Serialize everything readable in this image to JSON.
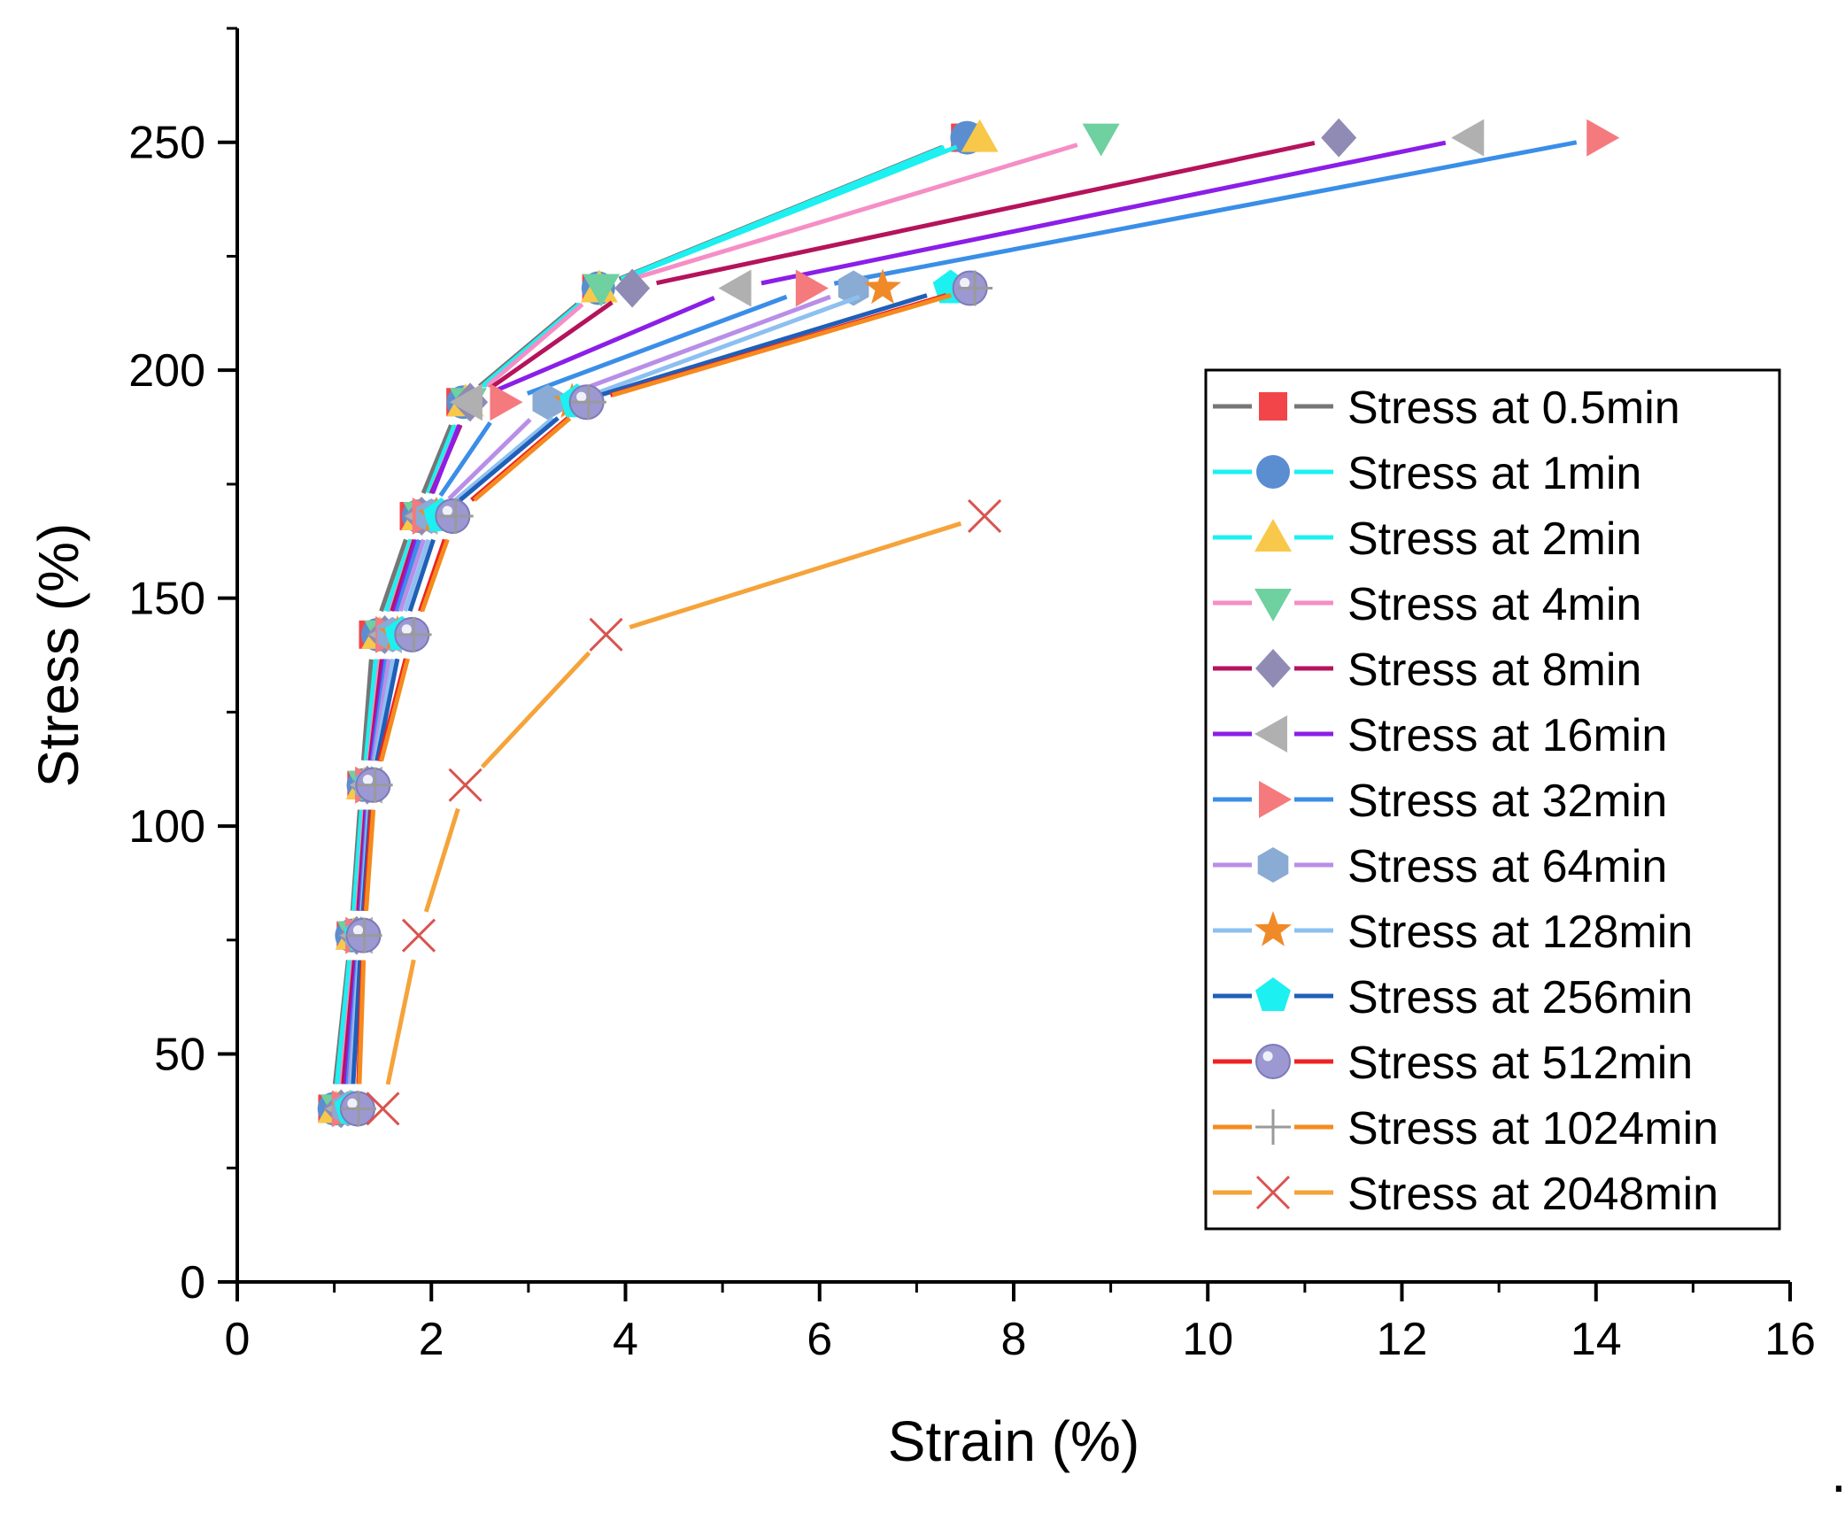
{
  "chart_data": {
    "type": "line",
    "title": "",
    "xlabel": "Strain (%)",
    "ylabel": "Stress (%)",
    "xlim": [
      0,
      16
    ],
    "ylim": [
      0,
      275
    ],
    "xticks": [
      0,
      2,
      4,
      6,
      8,
      10,
      12,
      14,
      16
    ],
    "yticks": [
      0,
      50,
      100,
      150,
      200,
      250
    ],
    "x_tick_labels": [
      "0",
      "2",
      "4",
      "6",
      "8",
      "10",
      "12",
      "14",
      "16"
    ],
    "y_tick_labels": [
      "0",
      "50",
      "100",
      "150",
      "200",
      "250"
    ],
    "grid": false,
    "legend_position": "right",
    "trailing_mark": ".",
    "series": [
      {
        "name": "Stress at 0.5min",
        "color": "#767676",
        "marker": "square",
        "marker_color": "#f2454a",
        "x": [
          0.98,
          1.17,
          1.28,
          1.4,
          1.82,
          2.3,
          3.7,
          7.5
        ],
        "y": [
          38,
          76,
          109,
          142,
          168,
          193,
          218,
          251
        ]
      },
      {
        "name": "Stress at 1min",
        "color": "#1df0f0",
        "marker": "circle",
        "marker_color": "#5b8ed0",
        "x": [
          1.0,
          1.18,
          1.3,
          1.45,
          1.87,
          2.33,
          3.72,
          7.52
        ],
        "y": [
          38,
          76,
          109,
          142,
          168,
          193,
          218,
          251
        ]
      },
      {
        "name": "Stress at 2min",
        "color": "#1df0f0",
        "marker": "triangle-up",
        "marker_color": "#f8c84a",
        "x": [
          1.02,
          1.2,
          1.31,
          1.47,
          1.88,
          2.35,
          3.73,
          7.65
        ],
        "y": [
          38,
          76,
          109,
          142,
          168,
          193,
          218,
          251
        ]
      },
      {
        "name": "Stress at 4min",
        "color": "#f58ec6",
        "marker": "triangle-down",
        "marker_color": "#6fd0a0",
        "x": [
          1.05,
          1.22,
          1.33,
          1.5,
          1.9,
          2.38,
          3.75,
          8.9
        ],
        "y": [
          38,
          76,
          109,
          142,
          168,
          193,
          218,
          251
        ]
      },
      {
        "name": "Stress at 8min",
        "color": "#b5135c",
        "marker": "diamond",
        "marker_color": "#8f8bb5",
        "x": [
          1.07,
          1.23,
          1.34,
          1.52,
          1.9,
          2.4,
          4.07,
          11.35
        ],
        "y": [
          38,
          76,
          109,
          142,
          168,
          193,
          218,
          251
        ]
      },
      {
        "name": "Stress at 16min",
        "color": "#8b1ee8",
        "marker": "triangle-left",
        "marker_color": "#b0b0b0",
        "x": [
          1.1,
          1.25,
          1.35,
          1.55,
          1.92,
          2.38,
          5.15,
          12.7
        ],
        "y": [
          38,
          76,
          109,
          142,
          168,
          193,
          218,
          251
        ]
      },
      {
        "name": "Stress at 32min",
        "color": "#3a8ee8",
        "marker": "triangle-right",
        "marker_color": "#f47a7e",
        "x": [
          1.12,
          1.26,
          1.36,
          1.57,
          1.95,
          2.75,
          5.9,
          14.05
        ],
        "y": [
          38,
          76,
          109,
          142,
          168,
          193,
          218,
          251
        ]
      },
      {
        "name": "Stress at 64min",
        "color": "#b98ee8",
        "marker": "hexagon",
        "marker_color": "#89abd4",
        "x": [
          1.14,
          1.27,
          1.37,
          1.6,
          2.0,
          3.2,
          6.35,
          0
        ],
        "y": [
          38,
          76,
          109,
          142,
          168,
          193,
          218,
          null
        ]
      },
      {
        "name": "Stress at 128min",
        "color": "#8dc0f0",
        "marker": "star",
        "marker_color": "#f08a28",
        "x": [
          1.16,
          1.27,
          1.38,
          1.65,
          2.05,
          3.45,
          6.65
        ],
        "y": [
          38,
          76,
          109,
          142,
          168,
          193,
          218
        ]
      },
      {
        "name": "Stress at 256min",
        "color": "#1f5fb8",
        "marker": "pentagon",
        "marker_color": "#1df0f0",
        "x": [
          1.18,
          1.28,
          1.39,
          1.7,
          2.1,
          3.5,
          7.35
        ],
        "y": [
          38,
          76,
          109,
          142,
          168,
          193,
          218
        ]
      },
      {
        "name": "Stress at 512min",
        "color": "#ee2222",
        "marker": "sphere",
        "marker_color": "#9c98d2",
        "x": [
          1.24,
          1.3,
          1.4,
          1.8,
          2.22,
          3.6,
          7.55
        ],
        "y": [
          38,
          76,
          109,
          142,
          168,
          193,
          218
        ]
      },
      {
        "name": "Stress at 1024min",
        "color": "#f58a1e",
        "marker": "plus",
        "marker_color": "#9a9a9a",
        "x": [
          1.25,
          1.31,
          1.42,
          1.82,
          2.25,
          3.62,
          7.6
        ],
        "y": [
          38,
          76,
          109,
          142,
          168,
          193,
          218
        ]
      },
      {
        "name": "Stress at 2048min",
        "color": "#f5a33a",
        "marker": "x",
        "marker_color": "#d9534f",
        "x": [
          1.5,
          1.87,
          2.35,
          3.8,
          7.7
        ],
        "y": [
          38,
          76,
          109,
          142,
          168
        ]
      }
    ]
  }
}
